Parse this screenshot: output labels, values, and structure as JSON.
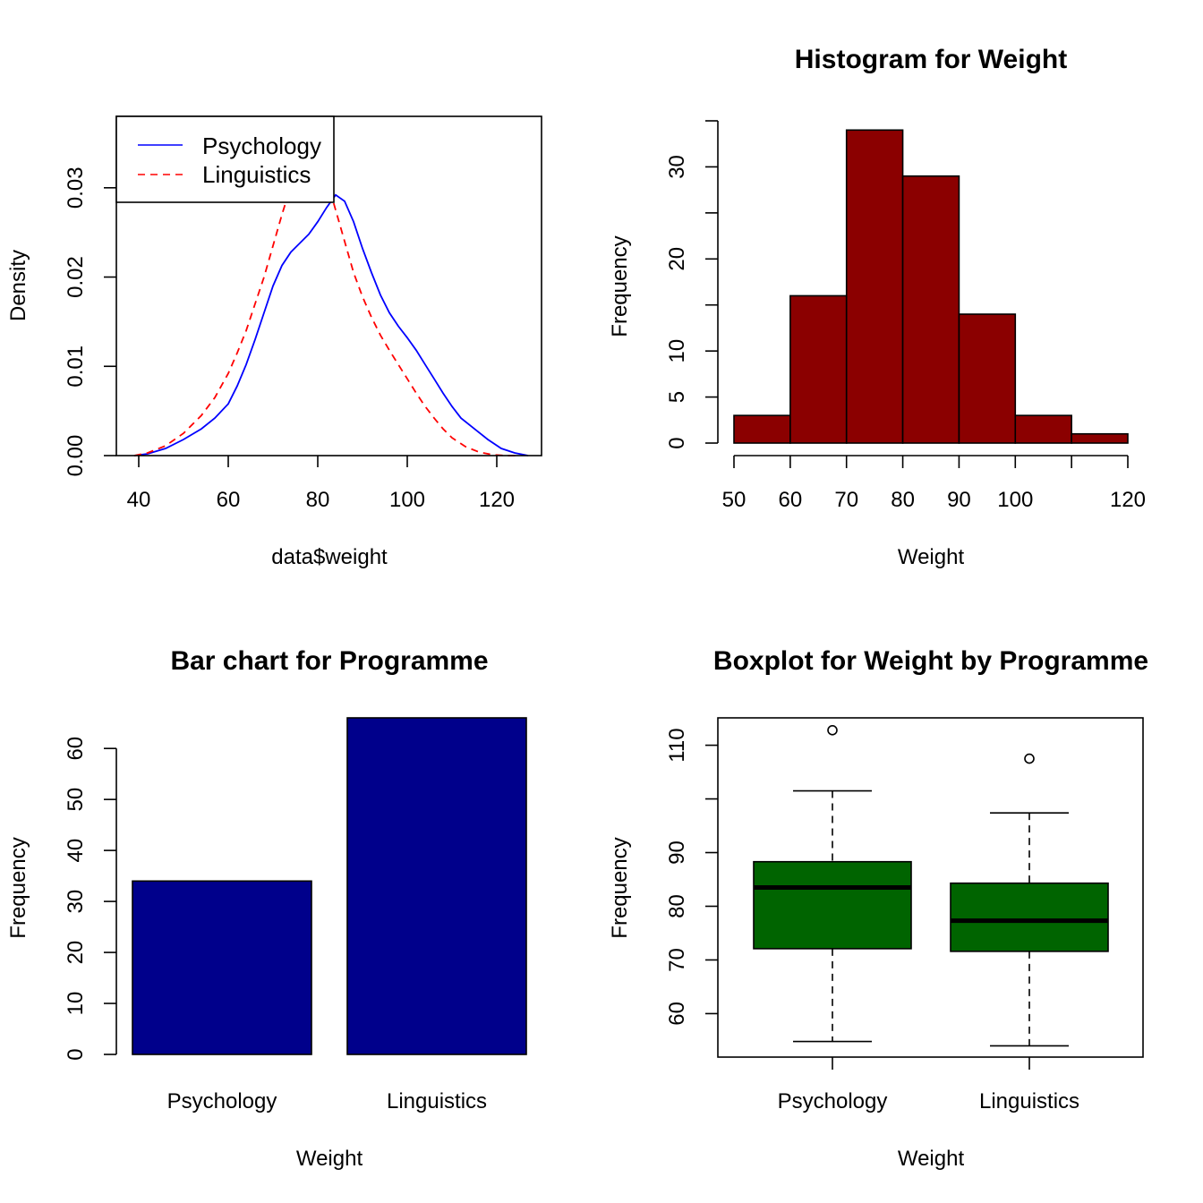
{
  "chart_data": [
    {
      "type": "line",
      "title": "",
      "xlabel": "data$weight",
      "ylabel": "Density",
      "xlim": [
        35,
        130
      ],
      "ylim": [
        0,
        0.038
      ],
      "x_ticks": [
        40,
        60,
        80,
        100,
        120
      ],
      "y_ticks": [
        0.0,
        0.01,
        0.02,
        0.03
      ],
      "y_tick_labels": [
        "0.00",
        "0.01",
        "0.02",
        "0.03"
      ],
      "legend_position": "top-left",
      "box": true,
      "series": [
        {
          "name": "Psychology",
          "color": "#0000ff",
          "style": "solid",
          "x": [
            39,
            42,
            46,
            50,
            54,
            57,
            60,
            62,
            64,
            66,
            68,
            70,
            72,
            74,
            76,
            78,
            80,
            82,
            84,
            86,
            88,
            90,
            92,
            94,
            96,
            98,
            100,
            102,
            104,
            106,
            108,
            110,
            112,
            115,
            118,
            121,
            124,
            127
          ],
          "y": [
            0.0,
            0.0002,
            0.0008,
            0.0018,
            0.003,
            0.0042,
            0.0058,
            0.0078,
            0.0102,
            0.013,
            0.016,
            0.019,
            0.0213,
            0.0228,
            0.0238,
            0.0248,
            0.0262,
            0.0278,
            0.0292,
            0.0285,
            0.0262,
            0.0232,
            0.0205,
            0.018,
            0.016,
            0.0145,
            0.0132,
            0.0118,
            0.0102,
            0.0086,
            0.007,
            0.0055,
            0.0042,
            0.003,
            0.0018,
            0.0008,
            0.0003,
            0.0
          ]
        },
        {
          "name": "Linguistics",
          "color": "#ff0000",
          "style": "dashed",
          "x": [
            39,
            42,
            46,
            50,
            54,
            57,
            60,
            62,
            64,
            66,
            68,
            70,
            72,
            74,
            76,
            78,
            80,
            82,
            84,
            86,
            88,
            90,
            92,
            94,
            96,
            98,
            100,
            102,
            104,
            106,
            108,
            110,
            113,
            116,
            119,
            122,
            125
          ],
          "y": [
            0.0,
            0.0003,
            0.0011,
            0.0025,
            0.0045,
            0.0065,
            0.0092,
            0.0115,
            0.014,
            0.017,
            0.02,
            0.0235,
            0.027,
            0.0302,
            0.0328,
            0.034,
            0.0335,
            0.031,
            0.0275,
            0.024,
            0.0205,
            0.0178,
            0.0155,
            0.0135,
            0.0118,
            0.0102,
            0.0086,
            0.007,
            0.0055,
            0.0042,
            0.003,
            0.002,
            0.001,
            0.0004,
            0.0001,
            0.0,
            0.0
          ]
        }
      ]
    },
    {
      "type": "bar",
      "title": "Histogram for Weight",
      "xlabel": "Weight",
      "ylabel": "Frequency",
      "color": "#8b0000",
      "bins": [
        [
          50,
          60
        ],
        [
          60,
          70
        ],
        [
          70,
          80
        ],
        [
          80,
          90
        ],
        [
          90,
          100
        ],
        [
          100,
          110
        ],
        [
          110,
          120
        ]
      ],
      "values": [
        3,
        16,
        34,
        29,
        14,
        3,
        1
      ],
      "x_ticks": [
        50,
        60,
        70,
        80,
        90,
        100,
        110,
        120
      ],
      "x_tick_labels": [
        "50",
        "60",
        "70",
        "80",
        "90",
        "100",
        "",
        "120"
      ],
      "y_ticks": [
        0,
        5,
        10,
        15,
        20,
        25,
        30,
        35
      ],
      "y_tick_labels": [
        "0",
        "5",
        "10",
        "",
        "20",
        "",
        "30",
        ""
      ],
      "xlim": [
        50,
        120
      ],
      "ylim": [
        0,
        35
      ]
    },
    {
      "type": "bar",
      "title": "Bar chart for Programme",
      "xlabel": "Weight",
      "ylabel": "Frequency",
      "color": "#00008b",
      "categories": [
        "Psychology",
        "Linguistics"
      ],
      "values": [
        34,
        66
      ],
      "y_ticks": [
        0,
        10,
        20,
        30,
        40,
        50,
        60
      ],
      "ylim": [
        0,
        66
      ]
    },
    {
      "type": "box",
      "title": "Boxplot for Weight by Programme",
      "xlabel": "Weight",
      "ylabel": "Frequency",
      "color": "#006400",
      "categories": [
        "Psychology",
        "Linguistics"
      ],
      "boxes": [
        {
          "whisker_low": 54.8,
          "q1": 72.1,
          "median": 83.5,
          "q3": 88.3,
          "whisker_high": 101.5,
          "outliers": [
            112.8
          ]
        },
        {
          "whisker_low": 54,
          "q1": 71.6,
          "median": 77.3,
          "q3": 84.3,
          "whisker_high": 97.4,
          "outliers": [
            107.5
          ]
        }
      ],
      "y_ticks": [
        60,
        70,
        80,
        90,
        100,
        110
      ],
      "y_tick_labels": [
        "60",
        "70",
        "80",
        "90",
        "",
        "110"
      ],
      "ylim": [
        51.9,
        115.1
      ],
      "box": true
    }
  ]
}
